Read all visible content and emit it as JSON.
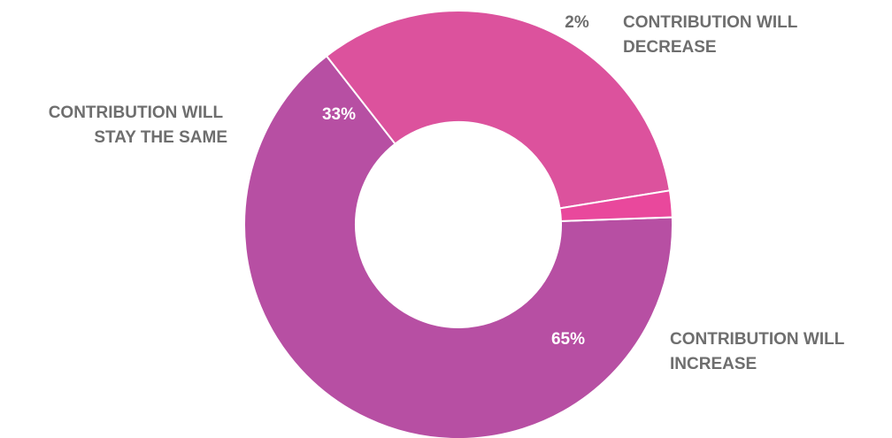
{
  "chart_data": {
    "type": "pie",
    "donut": true,
    "start_angle_deg": 88,
    "direction": "clockwise",
    "slices": [
      {
        "name": "increase",
        "value": 65,
        "value_label": "65%",
        "label_lines": [
          "CONTRIBUTION WILL",
          "INCREASE"
        ],
        "color": "#b74fa3"
      },
      {
        "name": "same",
        "value": 33,
        "value_label": "33%",
        "label_lines": [
          "CONTRIBUTION WILL",
          "STAY THE SAME"
        ],
        "color": "#dc529d"
      },
      {
        "name": "decrease",
        "value": 2,
        "value_label": "2%",
        "label_lines": [
          "CONTRIBUTION WILL",
          "DECREASE"
        ],
        "color": "#e9489c"
      }
    ],
    "value_label_color": "#ffffff",
    "outside_value_label_color": "#6e6e6e",
    "category_label_color": "#6e6e6e",
    "separator_color": "#ffffff"
  }
}
